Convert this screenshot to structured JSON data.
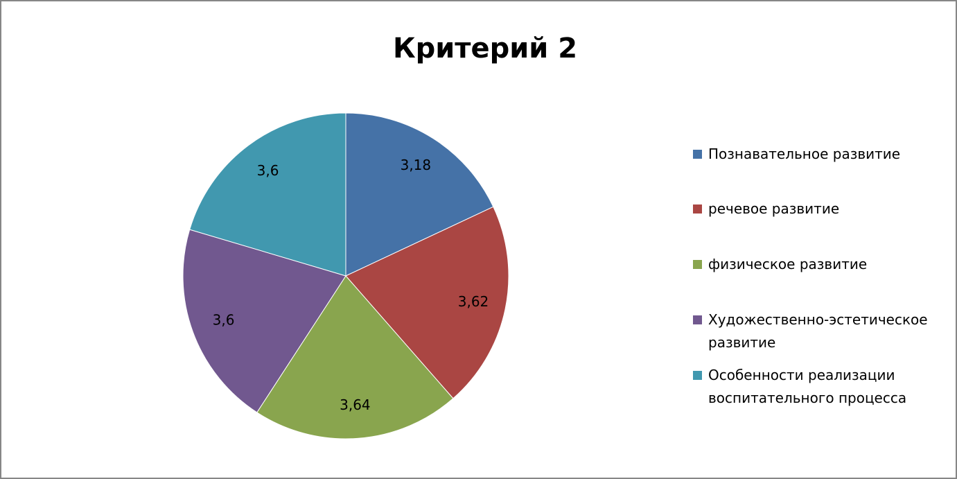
{
  "chart_data": {
    "type": "pie",
    "title": "Критерий 2",
    "categories": [
      "Познавательное развитие",
      "речевое развитие",
      "физическое развитие",
      "Художественно-эстетическое развитие",
      "Особенности реализации воспитательного процесса"
    ],
    "values": [
      3.18,
      3.62,
      3.64,
      3.6,
      3.6
    ],
    "value_labels": [
      "3,18",
      "3,62",
      "3,64",
      "3,6",
      "3,6"
    ],
    "colors": [
      "#4572a7",
      "#aa4643",
      "#89a54e",
      "#71588f",
      "#4198af"
    ],
    "legend": "right"
  }
}
